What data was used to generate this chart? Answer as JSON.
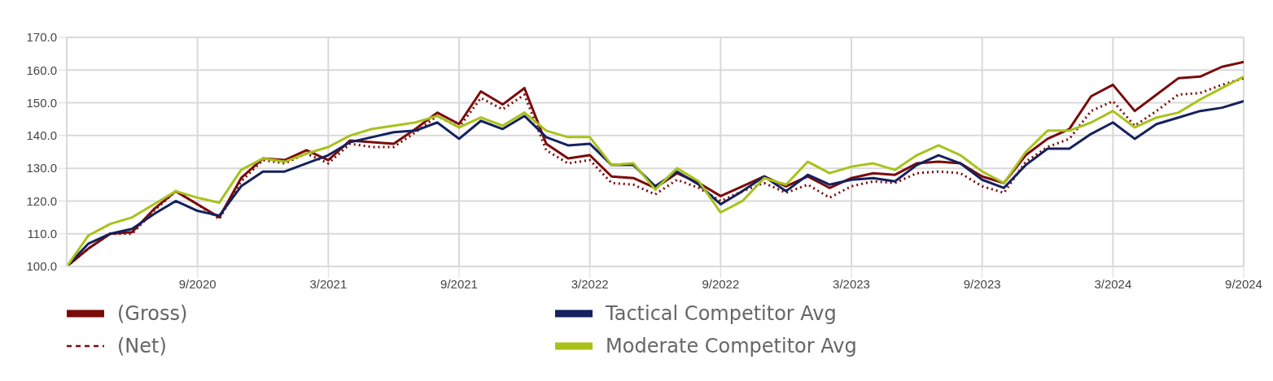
{
  "chart_data": {
    "type": "line",
    "x": [
      "2020-03",
      "2020-04",
      "2020-05",
      "2020-06",
      "2020-07",
      "2020-08",
      "2020-09",
      "2020-10",
      "2020-11",
      "2020-12",
      "2021-01",
      "2021-02",
      "2021-03",
      "2021-04",
      "2021-05",
      "2021-06",
      "2021-07",
      "2021-08",
      "2021-09",
      "2021-10",
      "2021-11",
      "2021-12",
      "2022-01",
      "2022-02",
      "2022-03",
      "2022-04",
      "2022-05",
      "2022-06",
      "2022-07",
      "2022-08",
      "2022-09",
      "2022-10",
      "2022-11",
      "2022-12",
      "2023-01",
      "2023-02",
      "2023-03",
      "2023-04",
      "2023-05",
      "2023-06",
      "2023-07",
      "2023-08",
      "2023-09",
      "2023-10",
      "2023-11",
      "2023-12",
      "2024-01",
      "2024-02",
      "2024-03",
      "2024-04",
      "2024-05",
      "2024-06",
      "2024-07",
      "2024-08",
      "2024-09"
    ],
    "series": [
      {
        "name": "(Gross)",
        "color": "#7b0a0a",
        "line_style": "solid",
        "values": [
          100,
          105.5,
          110,
          110.5,
          117.5,
          123,
          119,
          115,
          127,
          133,
          132.5,
          135.5,
          132.5,
          138.5,
          138,
          137.5,
          142,
          147,
          143.5,
          153.5,
          149.5,
          154.5,
          137.5,
          133,
          134,
          127.5,
          127,
          124,
          128.5,
          125.5,
          121.5,
          124.5,
          127.5,
          124.5,
          127.5,
          124,
          127,
          128.5,
          128,
          131.5,
          132,
          131.5,
          127.5,
          125.5,
          134,
          139,
          142,
          152,
          155.5,
          147.5,
          152.5,
          157.5,
          158,
          161,
          162.5
        ]
      },
      {
        "name": "(Net)",
        "color": "#7b0a0a",
        "line_style": "dotted",
        "values": [
          100,
          105.5,
          110,
          110,
          117,
          123,
          119,
          114.5,
          126,
          132.5,
          131.5,
          134.5,
          131.5,
          137.5,
          136.5,
          136.5,
          141,
          146,
          142.5,
          151.5,
          148,
          152.5,
          135.5,
          131.5,
          132.5,
          125.5,
          125,
          122,
          126.5,
          124,
          120,
          123,
          125.5,
          122.5,
          125,
          121,
          124.5,
          126,
          125.5,
          128.5,
          129,
          128.5,
          124.5,
          122.5,
          132,
          136.5,
          139,
          147.5,
          150.5,
          143,
          147.5,
          152.5,
          153,
          155.5,
          157.5
        ]
      },
      {
        "name": "Tactical Competitor Avg",
        "color": "#14215e",
        "line_style": "solid",
        "values": [
          100,
          107,
          110,
          111.5,
          116,
          120,
          117,
          115.5,
          124.5,
          129,
          129,
          131.5,
          134,
          138,
          139.5,
          141,
          141.5,
          144,
          139,
          144.5,
          142,
          146,
          139.5,
          137,
          137.5,
          131,
          131,
          124.5,
          129,
          125,
          119,
          123,
          127.5,
          123,
          128,
          125,
          126.5,
          127,
          126,
          131,
          134,
          131.5,
          126.5,
          124,
          131,
          136,
          136,
          140.5,
          144,
          139,
          143.5,
          145.5,
          147.5,
          148.5,
          150.5
        ]
      },
      {
        "name": "Moderate Competitor Avg",
        "color": "#a8c21a",
        "line_style": "solid",
        "values": [
          100,
          109.5,
          113,
          115,
          119,
          123,
          121,
          119.5,
          129.5,
          133,
          132,
          134.5,
          136.5,
          140,
          142,
          143,
          144,
          146,
          142.5,
          145.5,
          143,
          147,
          141.5,
          139.5,
          139.5,
          131,
          131.5,
          123.5,
          130,
          126,
          116.5,
          120,
          127,
          125,
          132,
          128.5,
          130.5,
          131.5,
          129.5,
          134,
          137,
          134,
          129,
          125.5,
          135,
          141.5,
          141.5,
          144,
          147.5,
          142.5,
          145.5,
          147,
          151,
          154.5,
          158
        ]
      }
    ],
    "xlim": [
      "2020-03",
      "2024-09"
    ],
    "xticks": [
      {
        "value": "2020-09",
        "label": "9/2020"
      },
      {
        "value": "2021-03",
        "label": "3/2021"
      },
      {
        "value": "2021-09",
        "label": "9/2021"
      },
      {
        "value": "2022-03",
        "label": "3/2022"
      },
      {
        "value": "2022-09",
        "label": "9/2022"
      },
      {
        "value": "2023-03",
        "label": "3/2023"
      },
      {
        "value": "2023-09",
        "label": "9/2023"
      },
      {
        "value": "2024-03",
        "label": "3/2024"
      },
      {
        "value": "2024-09",
        "label": "9/2024"
      }
    ],
    "ylim": [
      100,
      170
    ],
    "yticks": [
      {
        "value": 100,
        "label": "100.0"
      },
      {
        "value": 110,
        "label": "110.0"
      },
      {
        "value": 120,
        "label": "120.0"
      },
      {
        "value": 130,
        "label": "130.0"
      },
      {
        "value": 140,
        "label": "140.0"
      },
      {
        "value": 150,
        "label": "150.0"
      },
      {
        "value": 160,
        "label": "160.0"
      },
      {
        "value": 170,
        "label": "170.0"
      }
    ],
    "grid": true,
    "legend": "bottom",
    "marker": "none"
  }
}
